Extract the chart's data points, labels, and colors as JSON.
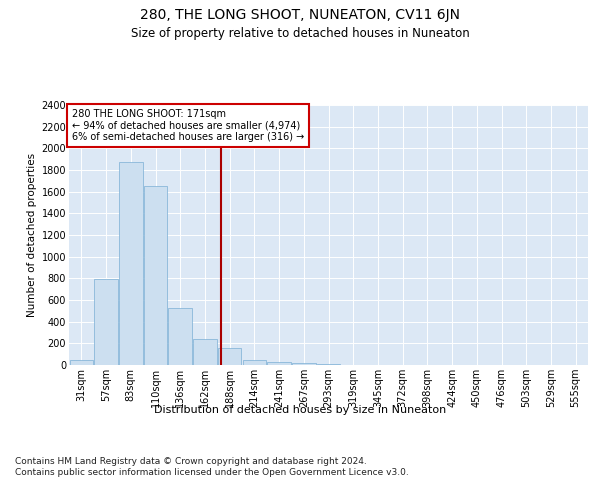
{
  "title": "280, THE LONG SHOOT, NUNEATON, CV11 6JN",
  "subtitle": "Size of property relative to detached houses in Nuneaton",
  "xlabel": "Distribution of detached houses by size in Nuneaton",
  "ylabel": "Number of detached properties",
  "bar_color": "#ccdff0",
  "bar_edge_color": "#7baed4",
  "background_color": "#dce8f5",
  "grid_color": "#ffffff",
  "annotation_box_color": "#cc0000",
  "vline_color": "#aa0000",
  "vline_position": 5.65,
  "annotation_text": "280 THE LONG SHOOT: 171sqm\n← 94% of detached houses are smaller (4,974)\n6% of semi-detached houses are larger (316) →",
  "categories": [
    "31sqm",
    "57sqm",
    "83sqm",
    "110sqm",
    "136sqm",
    "162sqm",
    "188sqm",
    "214sqm",
    "241sqm",
    "267sqm",
    "293sqm",
    "319sqm",
    "345sqm",
    "372sqm",
    "398sqm",
    "424sqm",
    "450sqm",
    "476sqm",
    "503sqm",
    "529sqm",
    "555sqm"
  ],
  "values": [
    50,
    790,
    1870,
    1650,
    530,
    240,
    160,
    50,
    30,
    15,
    5,
    0,
    0,
    0,
    0,
    0,
    0,
    0,
    0,
    0,
    0
  ],
  "ylim": [
    0,
    2400
  ],
  "yticks": [
    0,
    200,
    400,
    600,
    800,
    1000,
    1200,
    1400,
    1600,
    1800,
    2000,
    2200,
    2400
  ],
  "footnote": "Contains HM Land Registry data © Crown copyright and database right 2024.\nContains public sector information licensed under the Open Government Licence v3.0.",
  "title_fontsize": 10,
  "subtitle_fontsize": 8.5,
  "ylabel_fontsize": 7.5,
  "tick_fontsize": 7,
  "annotation_fontsize": 7,
  "footnote_fontsize": 6.5,
  "xlabel_fontsize": 8
}
